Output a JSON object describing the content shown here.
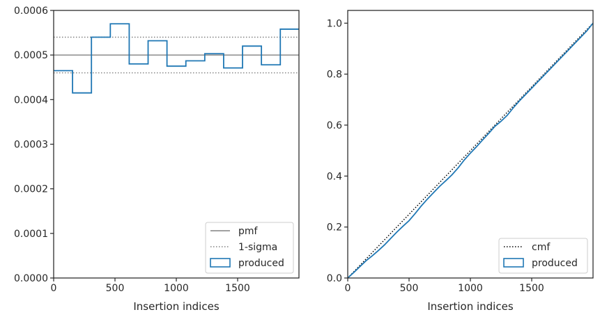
{
  "chart_data": [
    {
      "type": "step",
      "xlabel": "Insertion indices",
      "ylabel": "",
      "xlim": [
        0,
        2000
      ],
      "ylim": [
        0,
        0.0006
      ],
      "x_ticks": [
        0,
        500,
        1000,
        1500
      ],
      "x_tick_labels": [
        "0",
        "500",
        "1000",
        "1500"
      ],
      "y_ticks": [
        0,
        0.0001,
        0.0002,
        0.0003,
        0.0004,
        0.0005,
        0.0006
      ],
      "y_tick_labels": [
        "0.0000",
        "0.0001",
        "0.0002",
        "0.0003",
        "0.0004",
        "0.0005",
        "0.0006"
      ],
      "legend_position": "bottom-right",
      "legend": [
        {
          "label": "pmf",
          "style": "solid",
          "color": "#808080"
        },
        {
          "label": "1-sigma",
          "style": "dotted",
          "color": "#808080"
        },
        {
          "label": "produced",
          "style": "patch",
          "color": "#1f77b4"
        }
      ],
      "reference_lines": [
        {
          "name": "pmf",
          "y": 0.0005,
          "color": "#808080",
          "style": "solid"
        },
        {
          "name": "1-sigma",
          "y": 0.00054,
          "color": "#808080",
          "style": "dotted"
        },
        {
          "name": "1-sigma",
          "y": 0.00046,
          "color": "#808080",
          "style": "dotted"
        }
      ],
      "series": [
        {
          "name": "produced",
          "color": "#1f77b4",
          "bin_edges": [
            0,
            154,
            308,
            462,
            616,
            770,
            924,
            1078,
            1232,
            1386,
            1540,
            1694,
            1848,
            2000
          ],
          "values": [
            0.000465,
            0.000415,
            0.00054,
            0.00057,
            0.00048,
            0.000532,
            0.000475,
            0.000487,
            0.000503,
            0.000471,
            0.00052,
            0.000478,
            0.000558
          ]
        }
      ]
    },
    {
      "type": "line",
      "xlabel": "Insertion indices",
      "ylabel": "",
      "xlim": [
        0,
        2000
      ],
      "ylim": [
        0,
        1.05
      ],
      "x_ticks": [
        0,
        500,
        1000,
        1500
      ],
      "x_tick_labels": [
        "0",
        "500",
        "1000",
        "1500"
      ],
      "y_ticks": [
        0,
        0.2,
        0.4,
        0.6,
        0.8,
        1.0
      ],
      "y_tick_labels": [
        "0.0",
        "0.2",
        "0.4",
        "0.6",
        "0.8",
        "1.0"
      ],
      "legend_position": "bottom-right",
      "legend": [
        {
          "label": "cmf",
          "style": "dotted",
          "color": "#000000"
        },
        {
          "label": "produced",
          "style": "patch",
          "color": "#1f77b4"
        }
      ],
      "series": [
        {
          "name": "cmf",
          "color": "#000000",
          "style": "dotted",
          "x": [
            0,
            2000
          ],
          "y": [
            0,
            1.0
          ]
        },
        {
          "name": "produced",
          "color": "#1f77b4",
          "style": "solid",
          "x": [
            0,
            50,
            100,
            150,
            200,
            250,
            300,
            350,
            400,
            450,
            500,
            550,
            600,
            650,
            700,
            750,
            800,
            850,
            900,
            950,
            1000,
            1050,
            1100,
            1150,
            1200,
            1250,
            1300,
            1350,
            1400,
            1450,
            1500,
            1550,
            1600,
            1650,
            1700,
            1750,
            1800,
            1850,
            1900,
            1950,
            2000
          ],
          "y": [
            0,
            0.022,
            0.045,
            0.068,
            0.087,
            0.108,
            0.13,
            0.155,
            0.18,
            0.203,
            0.225,
            0.253,
            0.283,
            0.31,
            0.335,
            0.36,
            0.382,
            0.405,
            0.432,
            0.463,
            0.49,
            0.515,
            0.542,
            0.568,
            0.595,
            0.615,
            0.638,
            0.668,
            0.695,
            0.72,
            0.745,
            0.77,
            0.795,
            0.82,
            0.845,
            0.87,
            0.895,
            0.92,
            0.945,
            0.97,
            1.0
          ]
        }
      ]
    }
  ]
}
